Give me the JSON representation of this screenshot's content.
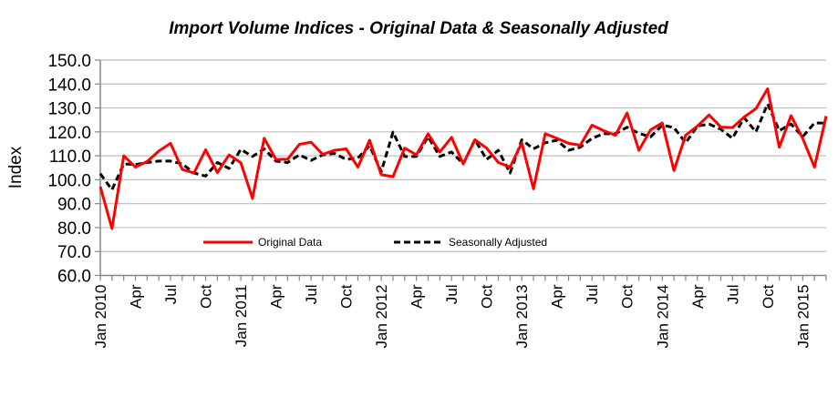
{
  "chart_data": {
    "type": "line",
    "title": "Import Volume Indices - Original Data & Seasonally Adjusted",
    "xlabel": "",
    "ylabel": "Index",
    "ylim": [
      60,
      150
    ],
    "yticks": [
      "60.0",
      "70.0",
      "80.0",
      "90.0",
      "100.0",
      "110.0",
      "120.0",
      "130.0",
      "140.0",
      "150.0"
    ],
    "grid": true,
    "legend_position": "bottom-center (inside plot)",
    "x": [
      "Jan 2010",
      "Feb 2010",
      "Mar 2010",
      "Apr 2010",
      "May 2010",
      "Jun 2010",
      "Jul 2010",
      "Aug 2010",
      "Sep 2010",
      "Oct 2010",
      "Nov 2010",
      "Dec 2010",
      "Jan 2011",
      "Feb 2011",
      "Mar 2011",
      "Apr 2011",
      "May 2011",
      "Jun 2011",
      "Jul 2011",
      "Aug 2011",
      "Sep 2011",
      "Oct 2011",
      "Nov 2011",
      "Dec 2011",
      "Jan 2012",
      "Feb 2012",
      "Mar 2012",
      "Apr 2012",
      "May 2012",
      "Jun 2012",
      "Jul 2012",
      "Aug 2012",
      "Sep 2012",
      "Oct 2012",
      "Nov 2012",
      "Dec 2012",
      "Jan 2013",
      "Feb 2013",
      "Mar 2013",
      "Apr 2013",
      "May 2013",
      "Jun 2013",
      "Jul 2013",
      "Aug 2013",
      "Sep 2013",
      "Oct 2013",
      "Nov 2013",
      "Dec 2013",
      "Jan 2014",
      "Feb 2014",
      "Mar 2014",
      "Apr 2014",
      "May 2014",
      "Jun 2014",
      "Jul 2014",
      "Aug 2014",
      "Sep 2014",
      "Oct 2014",
      "Nov 2014",
      "Dec 2014",
      "Jan 2015",
      "Feb 2015",
      "Mar 2015"
    ],
    "xtick_labels": [
      {
        "index": 0,
        "label": "Jan 2010"
      },
      {
        "index": 3,
        "label": "Apr"
      },
      {
        "index": 6,
        "label": "Jul"
      },
      {
        "index": 9,
        "label": "Oct"
      },
      {
        "index": 12,
        "label": "Jan 2011"
      },
      {
        "index": 15,
        "label": "Apr"
      },
      {
        "index": 18,
        "label": "Jul"
      },
      {
        "index": 21,
        "label": "Oct"
      },
      {
        "index": 24,
        "label": "Jan 2012"
      },
      {
        "index": 27,
        "label": "Apr"
      },
      {
        "index": 30,
        "label": "Jul"
      },
      {
        "index": 33,
        "label": "Oct"
      },
      {
        "index": 36,
        "label": "Jan 2013"
      },
      {
        "index": 39,
        "label": "Apr"
      },
      {
        "index": 42,
        "label": "Jul"
      },
      {
        "index": 45,
        "label": "Oct"
      },
      {
        "index": 48,
        "label": "Jan 2014"
      },
      {
        "index": 51,
        "label": "Apr"
      },
      {
        "index": 54,
        "label": "Jul"
      },
      {
        "index": 57,
        "label": "Oct"
      },
      {
        "index": 60,
        "label": "Jan 2015"
      }
    ],
    "series": [
      {
        "name": "Original Data",
        "color": "#ff0000",
        "style": "solid",
        "values": [
          97.1,
          79.6,
          110.0,
          105.3,
          107.6,
          112.0,
          115.2,
          104.3,
          102.8,
          112.5,
          103.0,
          110.4,
          107.1,
          92.2,
          117.3,
          108.5,
          108.6,
          114.8,
          115.7,
          110.6,
          112.3,
          112.9,
          105.3,
          116.5,
          102.1,
          101.3,
          113.2,
          110.4,
          119.2,
          111.6,
          117.7,
          106.6,
          116.7,
          113.2,
          107.2,
          105.3,
          115.4,
          96.2,
          119.2,
          117.3,
          115.2,
          114.4,
          122.8,
          120.5,
          118.6,
          127.9,
          112.3,
          120.8,
          123.7,
          103.8,
          118.6,
          122.4,
          127.1,
          122.0,
          121.8,
          126.2,
          129.7,
          138.0,
          113.6,
          126.8,
          117.3,
          105.3,
          126.6
        ]
      },
      {
        "name": "Seasonally Adjusted",
        "color": "#000000",
        "style": "dashed",
        "values": [
          102.5,
          95.8,
          106.6,
          106.3,
          107.2,
          107.8,
          107.8,
          106.6,
          102.8,
          101.5,
          107.2,
          104.7,
          112.7,
          109.7,
          112.9,
          107.8,
          107.2,
          110.4,
          108.1,
          110.4,
          111.0,
          108.5,
          109.1,
          114.2,
          103.4,
          119.9,
          109.7,
          109.7,
          118.0,
          109.7,
          111.6,
          106.6,
          116.7,
          108.5,
          112.3,
          102.8,
          116.7,
          112.9,
          115.4,
          116.5,
          112.3,
          113.6,
          117.3,
          119.2,
          119.2,
          121.9,
          119.4,
          117.9,
          122.8,
          121.8,
          115.4,
          122.4,
          123.3,
          121.1,
          117.3,
          125.9,
          120.0,
          131.7,
          120.5,
          123.3,
          118.0,
          123.7,
          123.7
        ]
      }
    ]
  }
}
